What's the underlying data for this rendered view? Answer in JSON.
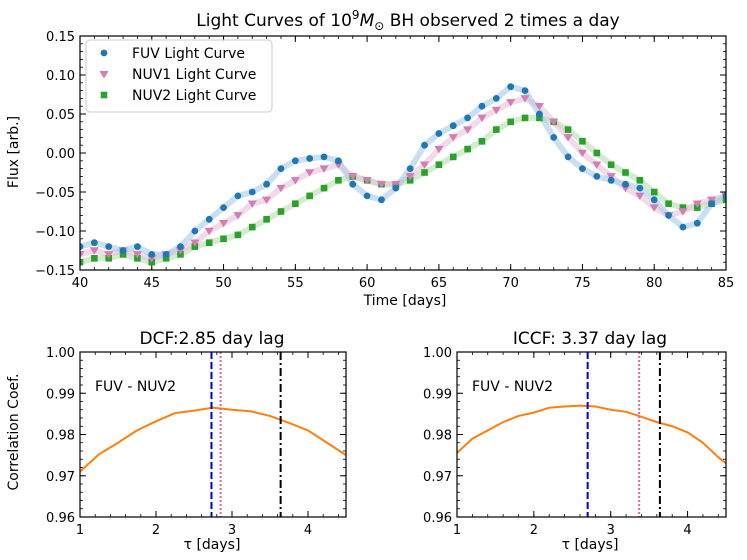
{
  "chart_data": [
    {
      "type": "scatter",
      "title": "Light Curves of 10^9 M_⊙ BH observed 2 times a day",
      "title_parts": {
        "pre": "Light Curves of 10",
        "exp": "9",
        "M": "M",
        "sub": "⊙",
        "post": " BH observed 2 times a day"
      },
      "xlabel": "Time [days]",
      "ylabel": "Flux [arb.]",
      "xlim": [
        40,
        85
      ],
      "ylim": [
        -0.15,
        0.15
      ],
      "xticks": [
        40,
        45,
        50,
        55,
        60,
        65,
        70,
        75,
        80,
        85
      ],
      "yticks": [
        -0.15,
        -0.1,
        -0.05,
        0.0,
        0.05,
        0.1,
        0.15
      ],
      "ytick_labels": [
        "−0.15",
        "−0.10",
        "−0.05",
        "0.00",
        "0.05",
        "0.10",
        "0.15"
      ],
      "legend_position": "upper-left",
      "series": [
        {
          "name": "FUV Light Curve",
          "marker": "circle",
          "color": "#1f77b4",
          "band_color": "#a6cbe8",
          "x": [
            40,
            41,
            42,
            43,
            44,
            45,
            46,
            47,
            48,
            49,
            50,
            51,
            52,
            53,
            54,
            55,
            56,
            57,
            58,
            59,
            60,
            61,
            62,
            63,
            64,
            65,
            66,
            67,
            68,
            69,
            70,
            71,
            72,
            73,
            74,
            75,
            76,
            77,
            78,
            79,
            80,
            81,
            82,
            83,
            84,
            85
          ],
          "y": [
            -0.12,
            -0.115,
            -0.12,
            -0.125,
            -0.12,
            -0.13,
            -0.13,
            -0.12,
            -0.1,
            -0.085,
            -0.07,
            -0.055,
            -0.05,
            -0.04,
            -0.02,
            -0.01,
            -0.007,
            -0.005,
            -0.01,
            -0.04,
            -0.055,
            -0.06,
            -0.045,
            -0.02,
            0.01,
            0.025,
            0.035,
            0.045,
            0.06,
            0.07,
            0.085,
            0.08,
            0.05,
            0.02,
            -0.005,
            -0.02,
            -0.03,
            -0.035,
            -0.04,
            -0.045,
            -0.06,
            -0.08,
            -0.095,
            -0.09,
            -0.065,
            -0.055
          ]
        },
        {
          "name": "NUV1 Light Curve",
          "marker": "triangle-down",
          "color": "#d17fb4",
          "band_color": "#e8c1da",
          "x": [
            40,
            41,
            42,
            43,
            44,
            45,
            46,
            47,
            48,
            49,
            50,
            51,
            52,
            53,
            54,
            55,
            56,
            57,
            58,
            59,
            60,
            61,
            62,
            63,
            64,
            65,
            66,
            67,
            68,
            69,
            70,
            71,
            72,
            73,
            74,
            75,
            76,
            77,
            78,
            79,
            80,
            81,
            82,
            83,
            84,
            85
          ],
          "y": [
            -0.13,
            -0.125,
            -0.13,
            -0.125,
            -0.13,
            -0.135,
            -0.13,
            -0.125,
            -0.115,
            -0.1,
            -0.09,
            -0.08,
            -0.065,
            -0.06,
            -0.045,
            -0.035,
            -0.025,
            -0.02,
            -0.015,
            -0.03,
            -0.035,
            -0.04,
            -0.04,
            -0.03,
            -0.015,
            0.005,
            0.02,
            0.03,
            0.045,
            0.055,
            0.065,
            0.07,
            0.06,
            0.04,
            0.02,
            0.0,
            -0.015,
            -0.03,
            -0.045,
            -0.055,
            -0.07,
            -0.08,
            -0.075,
            -0.065,
            -0.06,
            -0.055
          ]
        },
        {
          "name": "NUV2 Light Curve",
          "marker": "square",
          "color": "#2ca02c",
          "band_color": "#b9deb0",
          "x": [
            40,
            41,
            42,
            43,
            44,
            45,
            46,
            47,
            48,
            49,
            50,
            51,
            52,
            53,
            54,
            55,
            56,
            57,
            58,
            59,
            60,
            61,
            62,
            63,
            64,
            65,
            66,
            67,
            68,
            69,
            70,
            71,
            72,
            73,
            74,
            75,
            76,
            77,
            78,
            79,
            80,
            81,
            82,
            83,
            84,
            85
          ],
          "y": [
            -0.14,
            -0.135,
            -0.135,
            -0.13,
            -0.135,
            -0.14,
            -0.135,
            -0.13,
            -0.12,
            -0.115,
            -0.11,
            -0.105,
            -0.095,
            -0.085,
            -0.075,
            -0.065,
            -0.055,
            -0.045,
            -0.035,
            -0.03,
            -0.035,
            -0.04,
            -0.04,
            -0.035,
            -0.025,
            -0.015,
            -0.005,
            0.005,
            0.015,
            0.03,
            0.04,
            0.045,
            0.045,
            0.04,
            0.03,
            0.015,
            0.0,
            -0.015,
            -0.025,
            -0.035,
            -0.05,
            -0.065,
            -0.07,
            -0.07,
            -0.065,
            -0.06
          ]
        }
      ]
    },
    {
      "type": "line",
      "title": "DCF:2.85 day lag",
      "xlabel": "τ [days]",
      "ylabel": "Correlation Coef.",
      "annotation": "FUV - NUV2",
      "xlim": [
        1,
        4.5
      ],
      "ylim": [
        0.96,
        1.0
      ],
      "xticks": [
        1,
        2,
        3,
        4
      ],
      "yticks": [
        0.96,
        0.97,
        0.98,
        0.99,
        1.0
      ],
      "ytick_labels": [
        "0.96",
        "0.97",
        "0.98",
        "0.99",
        "1.00"
      ],
      "series": [
        {
          "x": [
            1.0,
            1.25,
            1.5,
            1.75,
            2.0,
            2.25,
            2.5,
            2.75,
            3.0,
            3.25,
            3.5,
            3.75,
            4.0,
            4.25,
            4.5
          ],
          "y": [
            0.971,
            0.9752,
            0.978,
            0.981,
            0.9832,
            0.9852,
            0.9858,
            0.9865,
            0.986,
            0.9856,
            0.9845,
            0.9828,
            0.981,
            0.978,
            0.975
          ],
          "color": "#ff7f0e"
        }
      ],
      "vlines": [
        {
          "x": 2.73,
          "style": "dashed",
          "color": "#0000dd"
        },
        {
          "x": 2.85,
          "style": "dotted",
          "color": "#e06b9a"
        },
        {
          "x": 3.64,
          "style": "dashdot",
          "color": "#000000"
        }
      ]
    },
    {
      "type": "line",
      "title": "ICCF: 3.37 day lag",
      "xlabel": "τ [days]",
      "ylabel": "",
      "annotation": "FUV - NUV2",
      "xlim": [
        1,
        4.5
      ],
      "ylim": [
        0.96,
        1.0
      ],
      "xticks": [
        1,
        2,
        3,
        4
      ],
      "yticks": [
        0.96,
        0.97,
        0.98,
        0.99,
        1.0
      ],
      "ytick_labels": [
        "0.96",
        "0.97",
        "0.98",
        "0.99",
        "1.00"
      ],
      "series": [
        {
          "x": [
            1.0,
            1.2,
            1.4,
            1.6,
            1.8,
            2.0,
            2.2,
            2.4,
            2.6,
            2.8,
            3.0,
            3.2,
            3.4,
            3.6,
            3.8,
            4.0,
            4.2,
            4.4,
            4.5
          ],
          "y": [
            0.9755,
            0.979,
            0.981,
            0.983,
            0.9845,
            0.9853,
            0.9865,
            0.9868,
            0.987,
            0.9868,
            0.986,
            0.9855,
            0.9843,
            0.983,
            0.982,
            0.9805,
            0.978,
            0.9745,
            0.973
          ],
          "color": "#ff7f0e"
        }
      ],
      "vlines": [
        {
          "x": 2.7,
          "style": "dashed",
          "color": "#0000dd"
        },
        {
          "x": 3.37,
          "style": "dotted",
          "color": "#e06b9a"
        },
        {
          "x": 3.64,
          "style": "dashdot",
          "color": "#000000"
        }
      ]
    }
  ]
}
